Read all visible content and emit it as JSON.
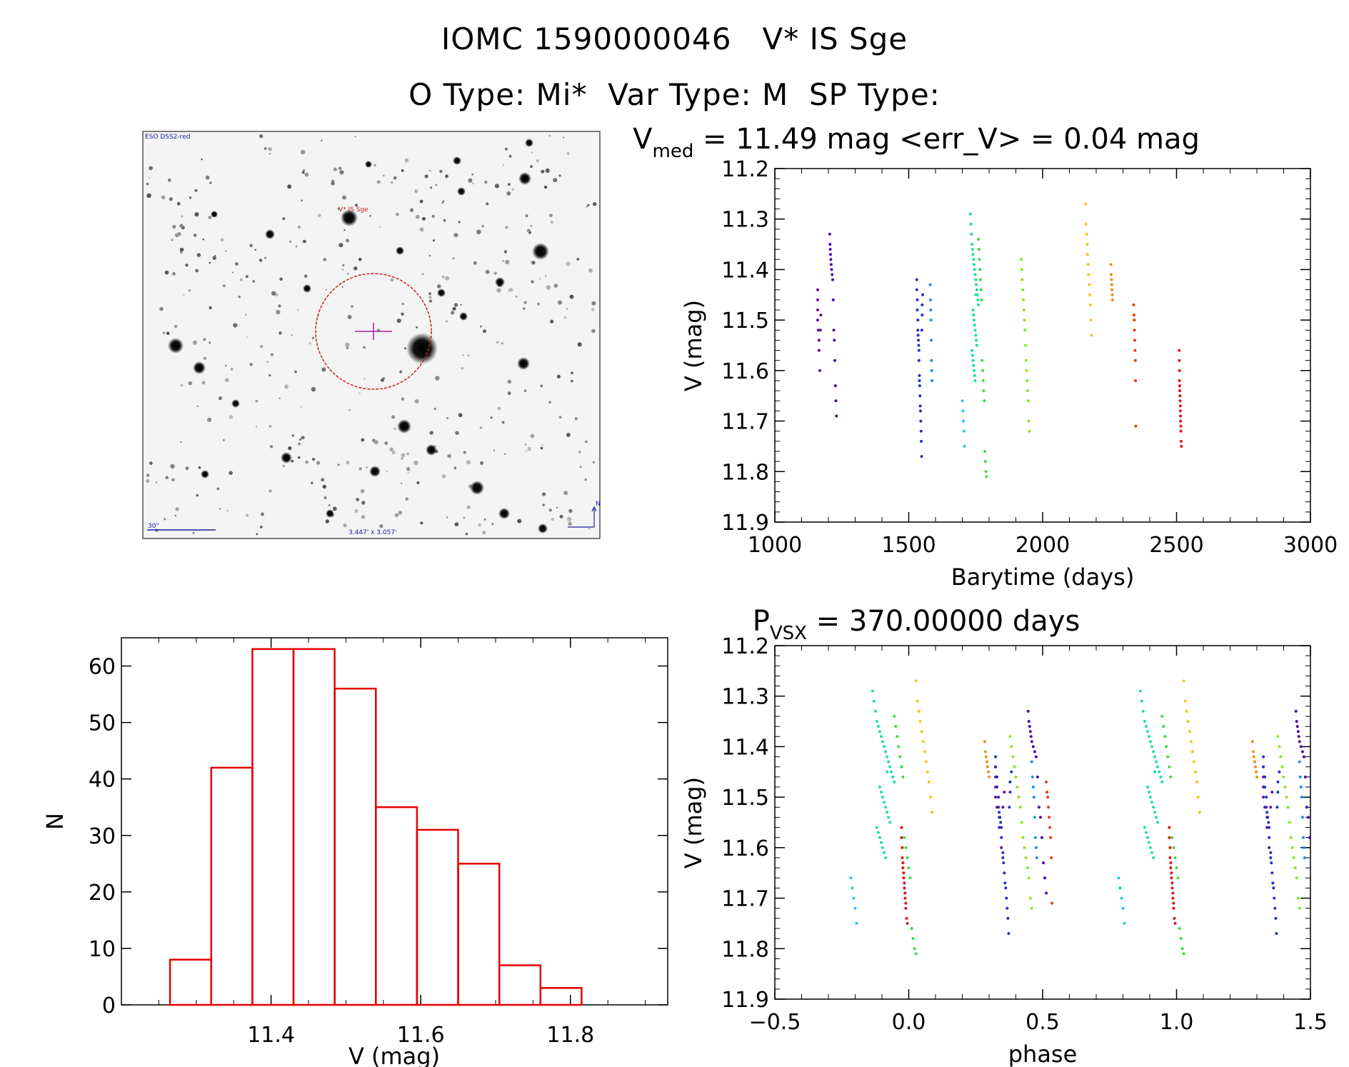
{
  "header": {
    "line1": "IOMC 1590000046   V* IS Sge",
    "line2": "O Type: Mi*  Var Type: M  SP Type:"
  },
  "finder": {
    "survey_label": "ESO DSS2-red",
    "target_label": "V* IS Sge",
    "scale_label": "30\"",
    "fov_label": "3.447' x 3.057'",
    "north_label": "N",
    "label_color": "#1a1aa8",
    "target_color": "#c81e1e"
  },
  "chart_data": [
    {
      "id": "lightcurve",
      "type": "scatter",
      "title_main": "V",
      "title_sub": "med",
      "title_rest": " = 11.49 mag <err_V> = 0.04 mag",
      "xlabel": "Barytime (days)",
      "ylabel": "V (mag)",
      "xlim": [
        1000,
        3000
      ],
      "ylim": [
        11.2,
        11.9
      ],
      "y_inverted": true,
      "xticks": [
        1000,
        1500,
        2000,
        2500,
        3000
      ],
      "xtick_labels": [
        "1000",
        "1500",
        "2000",
        "2500",
        "3000"
      ],
      "yticks": [
        11.2,
        11.3,
        11.4,
        11.5,
        11.6,
        11.7,
        11.8,
        11.9
      ],
      "ytick_labels": [
        "11.2",
        "11.3",
        "11.4",
        "11.5",
        "11.6",
        "11.7",
        "11.8",
        "11.9"
      ],
      "series": [
        {
          "name": "s1",
          "color": "#6a0ba0",
          "x": [
            1160,
            1160,
            1160,
            1160,
            1162,
            1165,
            1165,
            1168,
            1170,
            1172
          ],
          "y": [
            11.44,
            11.46,
            11.48,
            11.5,
            11.52,
            11.54,
            11.56,
            11.6,
            11.52,
            11.49
          ]
        },
        {
          "name": "s2",
          "color": "#4b0aa8",
          "x": [
            1205,
            1206,
            1207,
            1208,
            1209,
            1210,
            1212,
            1214,
            1216,
            1218,
            1220,
            1222,
            1224,
            1226,
            1228,
            1230
          ],
          "y": [
            11.33,
            11.35,
            11.36,
            11.37,
            11.38,
            11.39,
            11.4,
            11.41,
            11.42,
            11.46,
            11.52,
            11.54,
            11.58,
            11.63,
            11.66,
            11.69
          ]
        },
        {
          "name": "s3",
          "color": "#2230c8",
          "x": [
            1530,
            1530,
            1532,
            1532,
            1534,
            1534,
            1535,
            1536,
            1537,
            1538,
            1538,
            1540,
            1540,
            1541,
            1542,
            1543,
            1544,
            1545,
            1546,
            1547,
            1548,
            1549,
            1550,
            1550,
            1552
          ],
          "y": [
            11.42,
            11.44,
            11.46,
            11.48,
            11.5,
            11.52,
            11.53,
            11.54,
            11.55,
            11.56,
            11.58,
            11.61,
            11.62,
            11.63,
            11.65,
            11.67,
            11.68,
            11.7,
            11.72,
            11.74,
            11.77,
            11.52,
            11.49,
            11.47,
            11.45
          ]
        },
        {
          "name": "s4",
          "color": "#1e8cf0",
          "x": [
            1580,
            1581,
            1582,
            1583,
            1584,
            1585,
            1586,
            1587
          ],
          "y": [
            11.43,
            11.46,
            11.48,
            11.5,
            11.54,
            11.58,
            11.6,
            11.62
          ]
        },
        {
          "name": "s5",
          "color": "#1ec8e6",
          "x": [
            1700,
            1702,
            1704,
            1706,
            1708
          ],
          "y": [
            11.66,
            11.68,
            11.7,
            11.72,
            11.75
          ]
        },
        {
          "name": "s6",
          "color": "#1ee0a0",
          "x": [
            1730,
            1732,
            1734,
            1736,
            1738,
            1740,
            1742,
            1744,
            1746,
            1748,
            1750,
            1752,
            1754,
            1756,
            1758,
            1760,
            1740,
            1742,
            1744,
            1746,
            1748,
            1750,
            1752,
            1754,
            1736,
            1738,
            1740,
            1742,
            1744,
            1746,
            1748,
            1750
          ],
          "y": [
            11.29,
            11.31,
            11.33,
            11.35,
            11.36,
            11.37,
            11.38,
            11.39,
            11.4,
            11.41,
            11.42,
            11.43,
            11.44,
            11.45,
            11.46,
            11.47,
            11.48,
            11.49,
            11.5,
            11.51,
            11.52,
            11.53,
            11.54,
            11.55,
            11.56,
            11.57,
            11.58,
            11.59,
            11.6,
            11.61,
            11.62,
            11.45
          ]
        },
        {
          "name": "s7",
          "color": "#3cdc3c",
          "x": [
            1760,
            1762,
            1764,
            1766,
            1768,
            1770,
            1772,
            1774,
            1776,
            1778,
            1780,
            1782,
            1784,
            1786,
            1788,
            1790
          ],
          "y": [
            11.34,
            11.36,
            11.38,
            11.4,
            11.42,
            11.44,
            11.46,
            11.58,
            11.6,
            11.62,
            11.64,
            11.66,
            11.76,
            11.78,
            11.8,
            11.81
          ]
        },
        {
          "name": "s8",
          "color": "#8ce61e",
          "x": [
            1920,
            1922,
            1924,
            1926,
            1928,
            1930,
            1932,
            1934,
            1936,
            1938,
            1940,
            1942,
            1944,
            1946,
            1948,
            1950
          ],
          "y": [
            11.38,
            11.4,
            11.42,
            11.44,
            11.46,
            11.48,
            11.5,
            11.52,
            11.55,
            11.58,
            11.6,
            11.62,
            11.64,
            11.66,
            11.7,
            11.72
          ]
        },
        {
          "name": "s9",
          "color": "#f0c814",
          "x": [
            2160,
            2162,
            2164,
            2166,
            2168,
            2170,
            2172,
            2174,
            2176,
            2178,
            2180,
            2182
          ],
          "y": [
            11.27,
            11.31,
            11.33,
            11.35,
            11.37,
            11.39,
            11.41,
            11.43,
            11.45,
            11.47,
            11.5,
            11.53
          ]
        },
        {
          "name": "s10",
          "color": "#f08c14",
          "x": [
            2255,
            2256,
            2257,
            2258,
            2259,
            2260,
            2261
          ],
          "y": [
            11.39,
            11.41,
            11.42,
            11.43,
            11.44,
            11.45,
            11.46
          ]
        },
        {
          "name": "s11",
          "color": "#e63c14",
          "x": [
            2340,
            2341,
            2342,
            2343,
            2344,
            2345,
            2346,
            2347,
            2348
          ],
          "y": [
            11.47,
            11.49,
            11.5,
            11.52,
            11.54,
            11.56,
            11.58,
            11.62,
            11.71
          ]
        },
        {
          "name": "s12",
          "color": "#e61414",
          "x": [
            2510,
            2510,
            2511,
            2511,
            2512,
            2512,
            2513,
            2513,
            2514,
            2514,
            2515,
            2515,
            2516,
            2516,
            2517,
            2518
          ],
          "y": [
            11.56,
            11.58,
            11.6,
            11.62,
            11.63,
            11.64,
            11.65,
            11.66,
            11.67,
            11.68,
            11.69,
            11.7,
            11.71,
            11.72,
            11.74,
            11.75
          ]
        }
      ]
    },
    {
      "id": "phased",
      "type": "scatter",
      "title_main": "P",
      "title_sub": "VSX",
      "title_rest": " = 370.00000 days",
      "xlabel": "phase",
      "ylabel": "V (mag)",
      "xlim": [
        -0.5,
        1.5
      ],
      "ylim": [
        11.2,
        11.9
      ],
      "y_inverted": true,
      "xticks": [
        -0.5,
        0.0,
        0.5,
        1.0,
        1.5
      ],
      "xtick_labels": [
        "−0.5",
        "0.0",
        "0.5",
        "1.0",
        "1.5"
      ],
      "yticks": [
        11.2,
        11.3,
        11.4,
        11.5,
        11.6,
        11.7,
        11.8,
        11.9
      ],
      "ytick_labels": [
        "11.2",
        "11.3",
        "11.4",
        "11.5",
        "11.6",
        "11.7",
        "11.8",
        "11.9"
      ],
      "period": 370.0,
      "epoch": 1780,
      "phase_range": [
        -0.27,
        1.5
      ]
    },
    {
      "id": "histogram",
      "type": "bar",
      "xlabel": "V (mag)",
      "ylabel": "N",
      "xlim": [
        11.2,
        11.93
      ],
      "ylim": [
        0,
        65
      ],
      "xticks": [
        11.4,
        11.6,
        11.8
      ],
      "xtick_labels": [
        "11.4",
        "11.6",
        "11.8"
      ],
      "yticks": [
        0,
        10,
        20,
        30,
        40,
        50,
        60
      ],
      "ytick_labels": [
        "0",
        "10",
        "20",
        "30",
        "40",
        "50",
        "60"
      ],
      "bin_edges": [
        11.265,
        11.32,
        11.375,
        11.43,
        11.485,
        11.54,
        11.595,
        11.65,
        11.705,
        11.76,
        11.815,
        11.87
      ],
      "values": [
        8,
        42,
        63,
        63,
        56,
        35,
        31,
        25,
        7,
        3,
        0
      ],
      "color": "#e60000"
    }
  ]
}
